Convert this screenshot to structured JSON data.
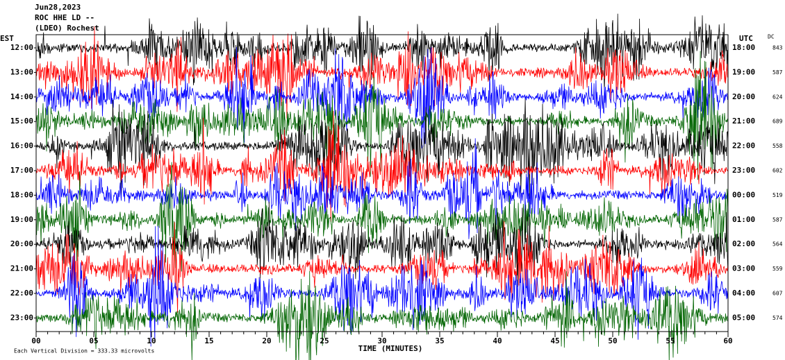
{
  "chart_data": {
    "type": "helicorder",
    "title_lines": [
      "Jun28,2023",
      "ROC HHE LD --",
      "(LDEO) Rochest"
    ],
    "left_axis_label": "EST",
    "right_axis_label": "UTC",
    "dc_label": "DC",
    "rows": [
      {
        "est": "12:00",
        "utc": "18:00",
        "dc": 843,
        "color": "#000000"
      },
      {
        "est": "13:00",
        "utc": "19:00",
        "dc": 587,
        "color": "#ff0000"
      },
      {
        "est": "14:00",
        "utc": "20:00",
        "dc": 624,
        "color": "#0000ff"
      },
      {
        "est": "15:00",
        "utc": "21:00",
        "dc": 689,
        "color": "#006400"
      },
      {
        "est": "16:00",
        "utc": "22:00",
        "dc": 558,
        "color": "#000000"
      },
      {
        "est": "17:00",
        "utc": "23:00",
        "dc": 602,
        "color": "#ff0000"
      },
      {
        "est": "18:00",
        "utc": "00:00",
        "dc": 519,
        "color": "#0000ff"
      },
      {
        "est": "19:00",
        "utc": "01:00",
        "dc": 587,
        "color": "#006400"
      },
      {
        "est": "20:00",
        "utc": "02:00",
        "dc": 564,
        "color": "#000000"
      },
      {
        "est": "21:00",
        "utc": "03:00",
        "dc": 559,
        "color": "#ff0000"
      },
      {
        "est": "22:00",
        "utc": "04:00",
        "dc": 607,
        "color": "#0000ff"
      },
      {
        "est": "23:00",
        "utc": "05:00",
        "dc": 574,
        "color": "#006400"
      }
    ],
    "xlim": [
      0,
      60
    ],
    "xticks": [
      {
        "value": 0,
        "label": "00"
      },
      {
        "value": 5,
        "label": "05"
      },
      10,
      15,
      20,
      25,
      30,
      35,
      40,
      45,
      50,
      55,
      60
    ],
    "xlabel": "TIME (MINUTES)",
    "footnote": "Each Vertical Division =  333.33 microvolts"
  }
}
